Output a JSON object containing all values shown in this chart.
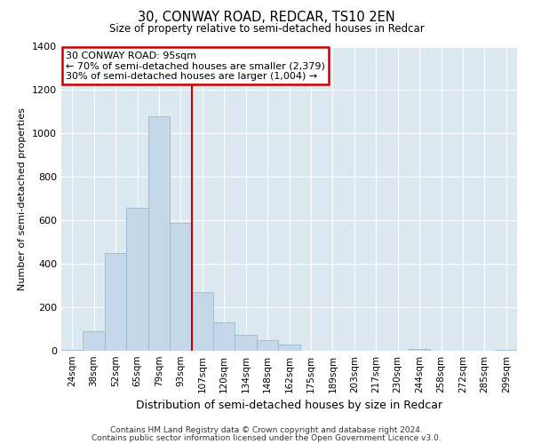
{
  "title": "30, CONWAY ROAD, REDCAR, TS10 2EN",
  "subtitle": "Size of property relative to semi-detached houses in Redcar",
  "xlabel": "Distribution of semi-detached houses by size in Redcar",
  "ylabel": "Number of semi-detached properties",
  "footer_line1": "Contains HM Land Registry data © Crown copyright and database right 2024.",
  "footer_line2": "Contains public sector information licensed under the Open Government Licence v3.0.",
  "annotation_title": "30 CONWAY ROAD: 95sqm",
  "annotation_line1": "← 70% of semi-detached houses are smaller (2,379)",
  "annotation_line2": "30% of semi-detached houses are larger (1,004) →",
  "bar_color": "#c5d8ea",
  "bar_edge_color": "#9ab8d0",
  "vline_color": "#cc0000",
  "background_color": "#dce8f0",
  "categories": [
    "24sqm",
    "38sqm",
    "52sqm",
    "65sqm",
    "79sqm",
    "93sqm",
    "107sqm",
    "120sqm",
    "134sqm",
    "148sqm",
    "162sqm",
    "175sqm",
    "189sqm",
    "203sqm",
    "217sqm",
    "230sqm",
    "244sqm",
    "258sqm",
    "272sqm",
    "285sqm",
    "299sqm"
  ],
  "values": [
    5,
    90,
    450,
    660,
    1080,
    590,
    270,
    130,
    75,
    50,
    30,
    0,
    0,
    0,
    0,
    0,
    10,
    0,
    0,
    0,
    5
  ],
  "vline_index": 5.5,
  "ylim": [
    0,
    1400
  ],
  "yticks": [
    0,
    200,
    400,
    600,
    800,
    1000,
    1200,
    1400
  ]
}
